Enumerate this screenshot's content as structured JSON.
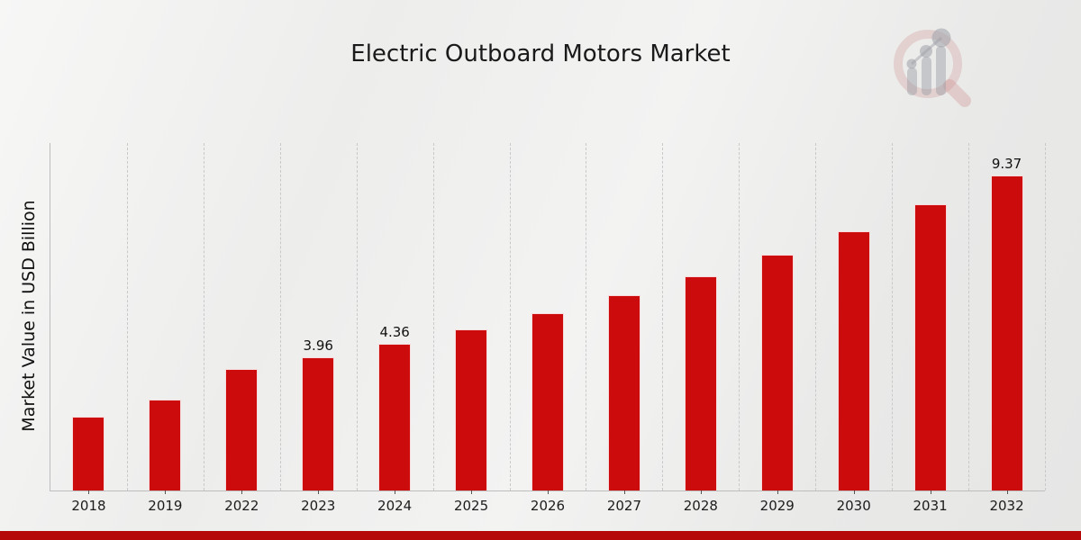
{
  "chart_data": {
    "type": "bar",
    "title": "Electric Outboard Motors Market",
    "ylabel": "Market Value in USD Billion",
    "xlabel": "",
    "categories": [
      "2018",
      "2019",
      "2022",
      "2023",
      "2024",
      "2025",
      "2026",
      "2027",
      "2028",
      "2029",
      "2030",
      "2031",
      "2032"
    ],
    "values": [
      2.2,
      2.7,
      3.6,
      3.96,
      4.36,
      4.8,
      5.28,
      5.8,
      6.38,
      7.02,
      7.72,
      8.5,
      9.37
    ],
    "data_labels": {
      "2023": "3.96",
      "2024": "4.36",
      "2032": "9.37"
    },
    "ylim": [
      0,
      10.33
    ],
    "grid": "vertical-dashed",
    "legend": "none",
    "colors": {
      "bar": "#cc0c0c",
      "bottom_strip": "#b50909",
      "grid": "#c9c9c9",
      "axis": "#bdbdbd",
      "text": "#1c1c1c",
      "logo_pink": "rgba(201,128,128,0.30)",
      "logo_gray": "rgba(150,152,160,0.48)"
    }
  },
  "branding": {
    "logo_icon": "magnifier-bar-chart-watermark-logo"
  }
}
